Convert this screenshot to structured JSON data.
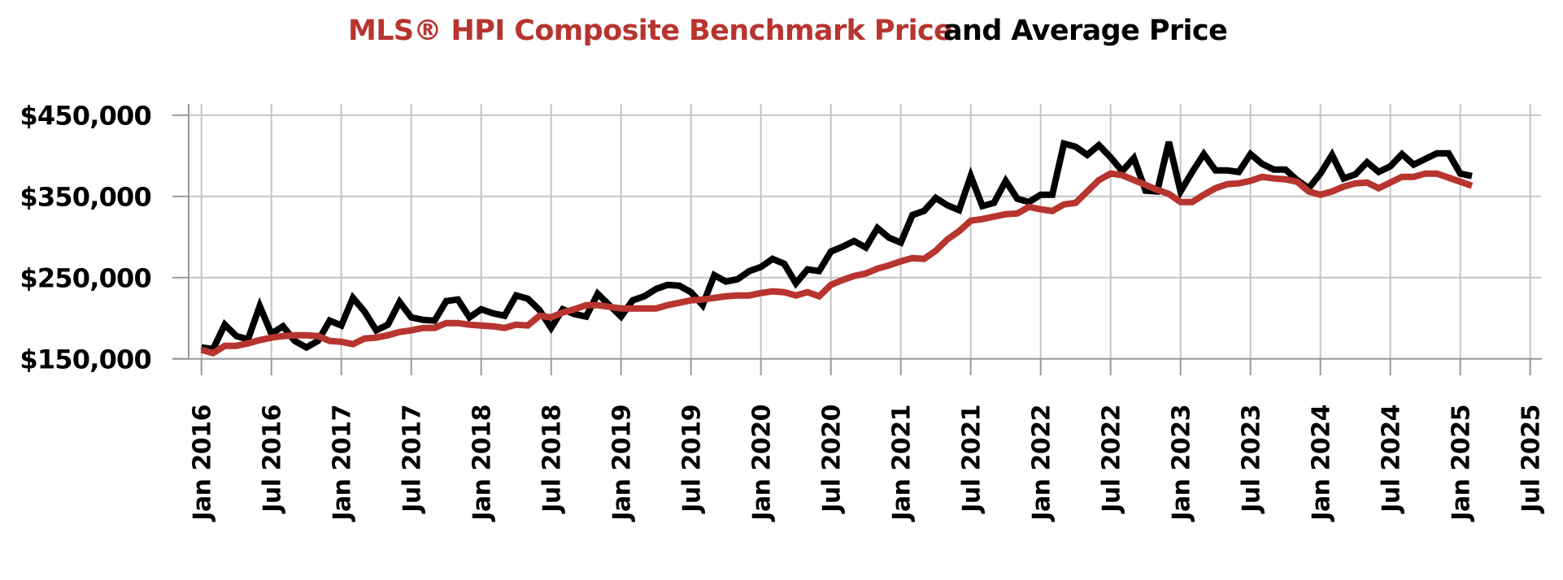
{
  "chart_data": {
    "type": "line",
    "title": {
      "part1": "MLS® HPI Composite Benchmark Price",
      "part2": "and Average Price"
    },
    "xlabel": "",
    "ylabel": "",
    "ylim": [
      150000,
      450000
    ],
    "grid": true,
    "legend": "none (series identified by title colours)",
    "x_start": "Jan 2016",
    "x_end": "Jul 2025",
    "x_interval_months": 1,
    "x_tick_labels": [
      "Jan 2016",
      "Jul 2016",
      "Jan 2017",
      "Jul 2017",
      "Jan 2018",
      "Jul 2018",
      "Jan 2019",
      "Jul 2019",
      "Jan 2020",
      "Jul 2020",
      "Jan 2021",
      "Jul 2021",
      "Jan 2022",
      "Jul 2022",
      "Jan 2023",
      "Jul 2023",
      "Jan 2024",
      "Jul 2024",
      "Jan 2025",
      "Jul 2025"
    ],
    "y_tick_values": [
      150000,
      250000,
      350000,
      450000
    ],
    "y_tick_labels": [
      "$150,000",
      "$250,000",
      "$350,000",
      "$450,000"
    ],
    "series": [
      {
        "name": "Average Price",
        "color": "#000000",
        "values": [
          164000,
          162000,
          192000,
          178000,
          174000,
          215000,
          181000,
          190000,
          172000,
          164000,
          172000,
          197000,
          191000,
          225000,
          208000,
          185000,
          192000,
          220000,
          201000,
          198000,
          197000,
          221000,
          223000,
          201000,
          211000,
          206000,
          203000,
          228000,
          224000,
          210000,
          188000,
          211000,
          205000,
          202000,
          230000,
          216000,
          202000,
          222000,
          227000,
          236000,
          241000,
          240000,
          232000,
          216000,
          253000,
          245000,
          248000,
          258000,
          263000,
          273000,
          267000,
          243000,
          260000,
          258000,
          282000,
          288000,
          295000,
          287000,
          311000,
          299000,
          293000,
          327000,
          332000,
          348000,
          339000,
          333000,
          375000,
          338000,
          342000,
          369000,
          347000,
          343000,
          352000,
          352000,
          415000,
          411000,
          401000,
          413000,
          398000,
          381000,
          397000,
          357000,
          356000,
          417000,
          356000,
          380000,
          402000,
          382000,
          382000,
          380000,
          402000,
          390000,
          383000,
          383000,
          370000,
          360000,
          378000,
          401000,
          372000,
          377000,
          392000,
          380000,
          387000,
          402000,
          389000,
          396000,
          403000,
          403000,
          378000,
          375000
        ]
      },
      {
        "name": "MLS® HPI Composite Benchmark Price",
        "color": "#b8342f",
        "values": [
          161000,
          157000,
          166000,
          166000,
          169000,
          173000,
          176000,
          178000,
          179000,
          179000,
          178000,
          172000,
          171000,
          168000,
          175000,
          176000,
          179000,
          183000,
          185000,
          188000,
          188000,
          194000,
          194000,
          192000,
          191000,
          190000,
          188000,
          192000,
          191000,
          203000,
          201000,
          207000,
          211000,
          216000,
          216000,
          214000,
          212000,
          212000,
          212000,
          212000,
          216000,
          219000,
          222000,
          223000,
          225000,
          227000,
          228000,
          228000,
          231000,
          233000,
          232000,
          228000,
          232000,
          227000,
          241000,
          247000,
          252000,
          255000,
          261000,
          265000,
          270000,
          274000,
          273000,
          283000,
          297000,
          307000,
          320000,
          322000,
          325000,
          328000,
          329000,
          337000,
          334000,
          332000,
          340000,
          342000,
          356000,
          370000,
          378000,
          376000,
          370000,
          364000,
          358000,
          353000,
          343000,
          343000,
          352000,
          360000,
          365000,
          366000,
          369000,
          374000,
          372000,
          371000,
          368000,
          356000,
          352000,
          356000,
          362000,
          366000,
          367000,
          360000,
          367000,
          374000,
          374000,
          378000,
          378000,
          373000,
          368000,
          363000
        ]
      }
    ]
  }
}
